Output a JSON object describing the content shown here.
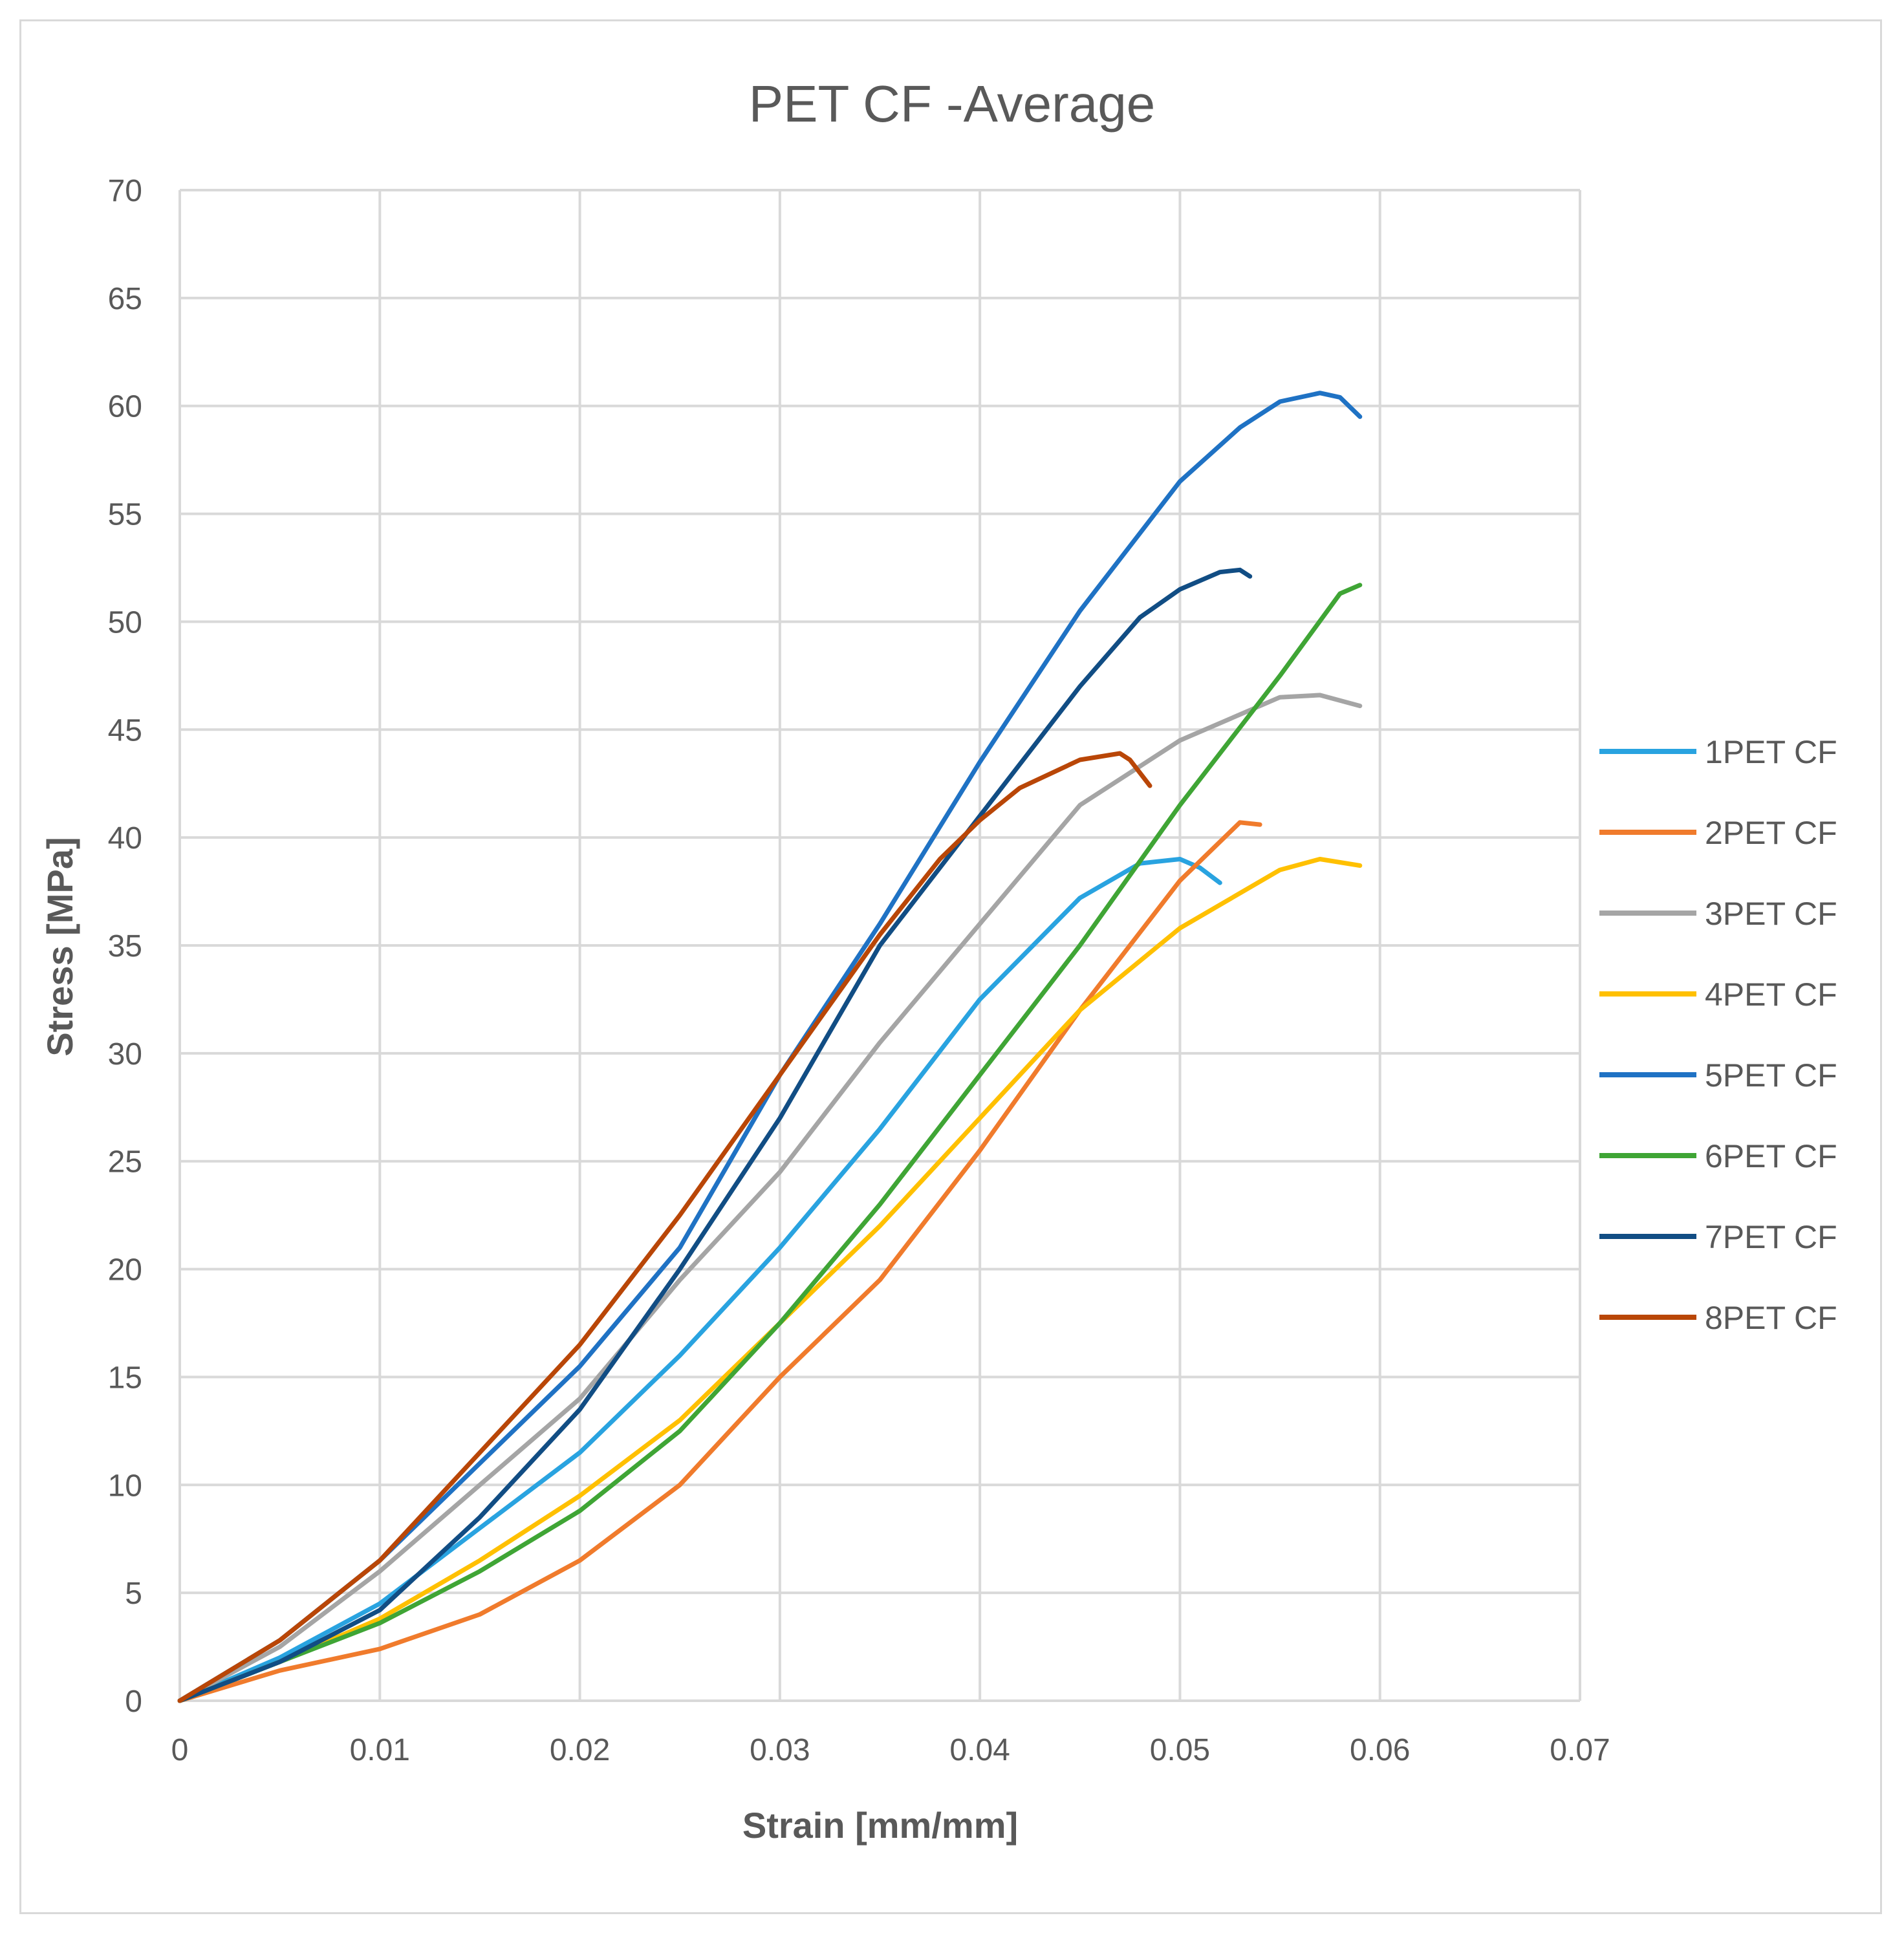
{
  "chart_data": {
    "type": "line",
    "title": "PET CF -Average",
    "xlabel": "Strain [mm/mm]",
    "ylabel": "Stress [MPa]",
    "xlim": [
      0,
      0.07
    ],
    "ylim": [
      0,
      70
    ],
    "x_ticks": [
      0,
      0.01,
      0.02,
      0.03,
      0.04,
      0.05,
      0.06,
      0.07
    ],
    "x_tick_labels": [
      "0",
      "0.01",
      "0.02",
      "0.03",
      "0.04",
      "0.05",
      "0.06",
      "0.07"
    ],
    "y_ticks": [
      0,
      5,
      10,
      15,
      20,
      25,
      30,
      35,
      40,
      45,
      50,
      55,
      60,
      65,
      70
    ],
    "y_tick_labels": [
      "0",
      "5",
      "10",
      "15",
      "20",
      "25",
      "30",
      "35",
      "40",
      "45",
      "50",
      "55",
      "60",
      "65",
      "70"
    ],
    "grid": true,
    "legend_position": "right",
    "series": [
      {
        "name": "1PET CF",
        "color": "#29a3e0",
        "x": [
          0,
          0.005,
          0.01,
          0.015,
          0.02,
          0.025,
          0.03,
          0.035,
          0.04,
          0.045,
          0.048,
          0.05,
          0.051,
          0.052
        ],
        "y": [
          0,
          2,
          4.5,
          8,
          11.5,
          16,
          21,
          26.5,
          32.5,
          37.2,
          38.8,
          39,
          38.6,
          37.9
        ]
      },
      {
        "name": "2PET CF",
        "color": "#f07b2c",
        "x": [
          0,
          0.005,
          0.01,
          0.015,
          0.02,
          0.025,
          0.03,
          0.035,
          0.04,
          0.045,
          0.05,
          0.052,
          0.053,
          0.054
        ],
        "y": [
          0,
          1.4,
          2.4,
          4,
          6.5,
          10,
          15,
          19.5,
          25.5,
          32,
          38,
          39.8,
          40.7,
          40.6
        ]
      },
      {
        "name": "3PET CF",
        "color": "#a5a5a5",
        "x": [
          0,
          0.005,
          0.01,
          0.015,
          0.02,
          0.025,
          0.03,
          0.035,
          0.04,
          0.045,
          0.05,
          0.055,
          0.057,
          0.059
        ],
        "y": [
          0,
          2.5,
          6,
          10,
          14,
          19.5,
          24.5,
          30.5,
          36,
          41.5,
          44.5,
          46.5,
          46.6,
          46.1
        ]
      },
      {
        "name": "4PET CF",
        "color": "#ffc000",
        "x": [
          0,
          0.005,
          0.01,
          0.015,
          0.02,
          0.025,
          0.03,
          0.035,
          0.04,
          0.045,
          0.05,
          0.055,
          0.057,
          0.059
        ],
        "y": [
          0,
          1.8,
          3.8,
          6.5,
          9.5,
          13,
          17.5,
          22,
          27,
          32,
          35.8,
          38.5,
          39,
          38.7
        ]
      },
      {
        "name": "5PET CF",
        "color": "#1f72c4",
        "x": [
          0,
          0.005,
          0.01,
          0.015,
          0.02,
          0.025,
          0.03,
          0.035,
          0.04,
          0.045,
          0.05,
          0.053,
          0.055,
          0.057,
          0.058,
          0.059
        ],
        "y": [
          0,
          2.8,
          6.5,
          11,
          15.5,
          21,
          29,
          36,
          43.5,
          50.5,
          56.5,
          59,
          60.2,
          60.6,
          60.4,
          59.5
        ]
      },
      {
        "name": "6PET CF",
        "color": "#3fa535",
        "x": [
          0,
          0.005,
          0.01,
          0.015,
          0.02,
          0.025,
          0.03,
          0.035,
          0.04,
          0.045,
          0.05,
          0.055,
          0.058,
          0.059
        ],
        "y": [
          0,
          1.8,
          3.6,
          6,
          8.8,
          12.5,
          17.5,
          23,
          29,
          35,
          41.5,
          47.5,
          51.3,
          51.7
        ]
      },
      {
        "name": "7PET CF",
        "color": "#114d84",
        "x": [
          0,
          0.005,
          0.01,
          0.015,
          0.02,
          0.025,
          0.03,
          0.035,
          0.04,
          0.045,
          0.048,
          0.05,
          0.052,
          0.053,
          0.0535
        ],
        "y": [
          0,
          1.8,
          4.2,
          8.5,
          13.5,
          20,
          27,
          35,
          41,
          47,
          50.2,
          51.5,
          52.3,
          52.4,
          52.1
        ]
      },
      {
        "name": "8PET CF",
        "color": "#b94607",
        "x": [
          0,
          0.005,
          0.01,
          0.015,
          0.02,
          0.025,
          0.03,
          0.035,
          0.038,
          0.04,
          0.042,
          0.045,
          0.047,
          0.0475,
          0.0485
        ],
        "y": [
          0,
          2.8,
          6.5,
          11.5,
          16.5,
          22.5,
          29,
          35.5,
          39,
          40.8,
          42.3,
          43.6,
          43.9,
          43.6,
          42.4
        ]
      }
    ]
  }
}
